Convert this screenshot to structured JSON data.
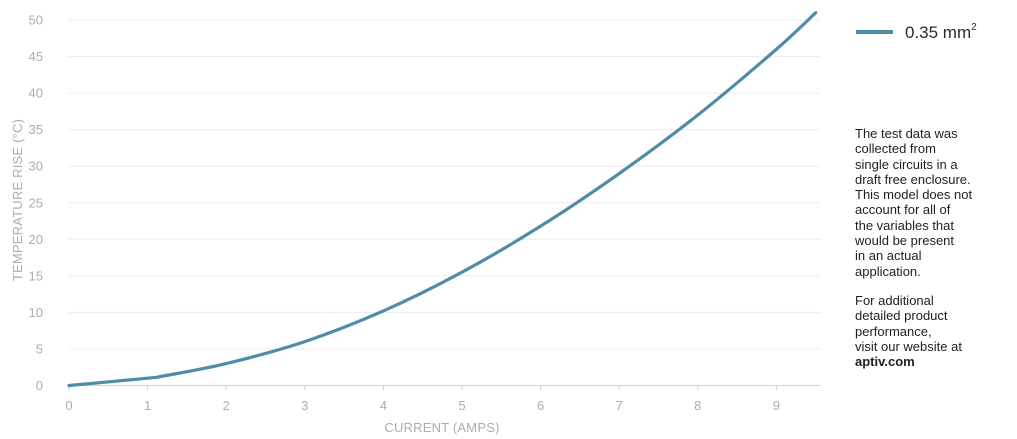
{
  "chart_data": {
    "type": "line",
    "xlabel": "CURRENT (AMPS)",
    "ylabel": "TEMPERATURE RISE (°C)",
    "xlim": [
      0,
      9.5
    ],
    "ylim": [
      0,
      51
    ],
    "x_ticks": [
      "0",
      "1",
      "2",
      "3",
      "4",
      "5",
      "6",
      "7",
      "8",
      "9"
    ],
    "y_ticks": [
      "0",
      "5",
      "10",
      "15",
      "20",
      "25",
      "30",
      "35",
      "40",
      "45",
      "50"
    ],
    "grid": "horizontal",
    "legend_position": "top-right",
    "series": [
      {
        "name": "0.35 mm",
        "name_sup": "2",
        "color": "#4f8ca8",
        "x": [
          0,
          1,
          1.2,
          2,
          3,
          4,
          5,
          6,
          7,
          8,
          9,
          9.5
        ],
        "y": [
          0,
          1.0,
          1.3,
          3.0,
          6.0,
          10.2,
          15.5,
          21.8,
          29.0,
          37.0,
          46.0,
          51.0
        ]
      }
    ]
  },
  "notes": {
    "disclaimer": "The test data was\ncollected from\nsingle circuits in a\ndraft free enclosure.\nThis model does not\naccount for all of\nthe variables that\nwould be present\nin an actual\napplication.",
    "more_info": "For additional\ndetailed product\nperformance,\nvisit our website at",
    "website": "aptiv.com"
  }
}
